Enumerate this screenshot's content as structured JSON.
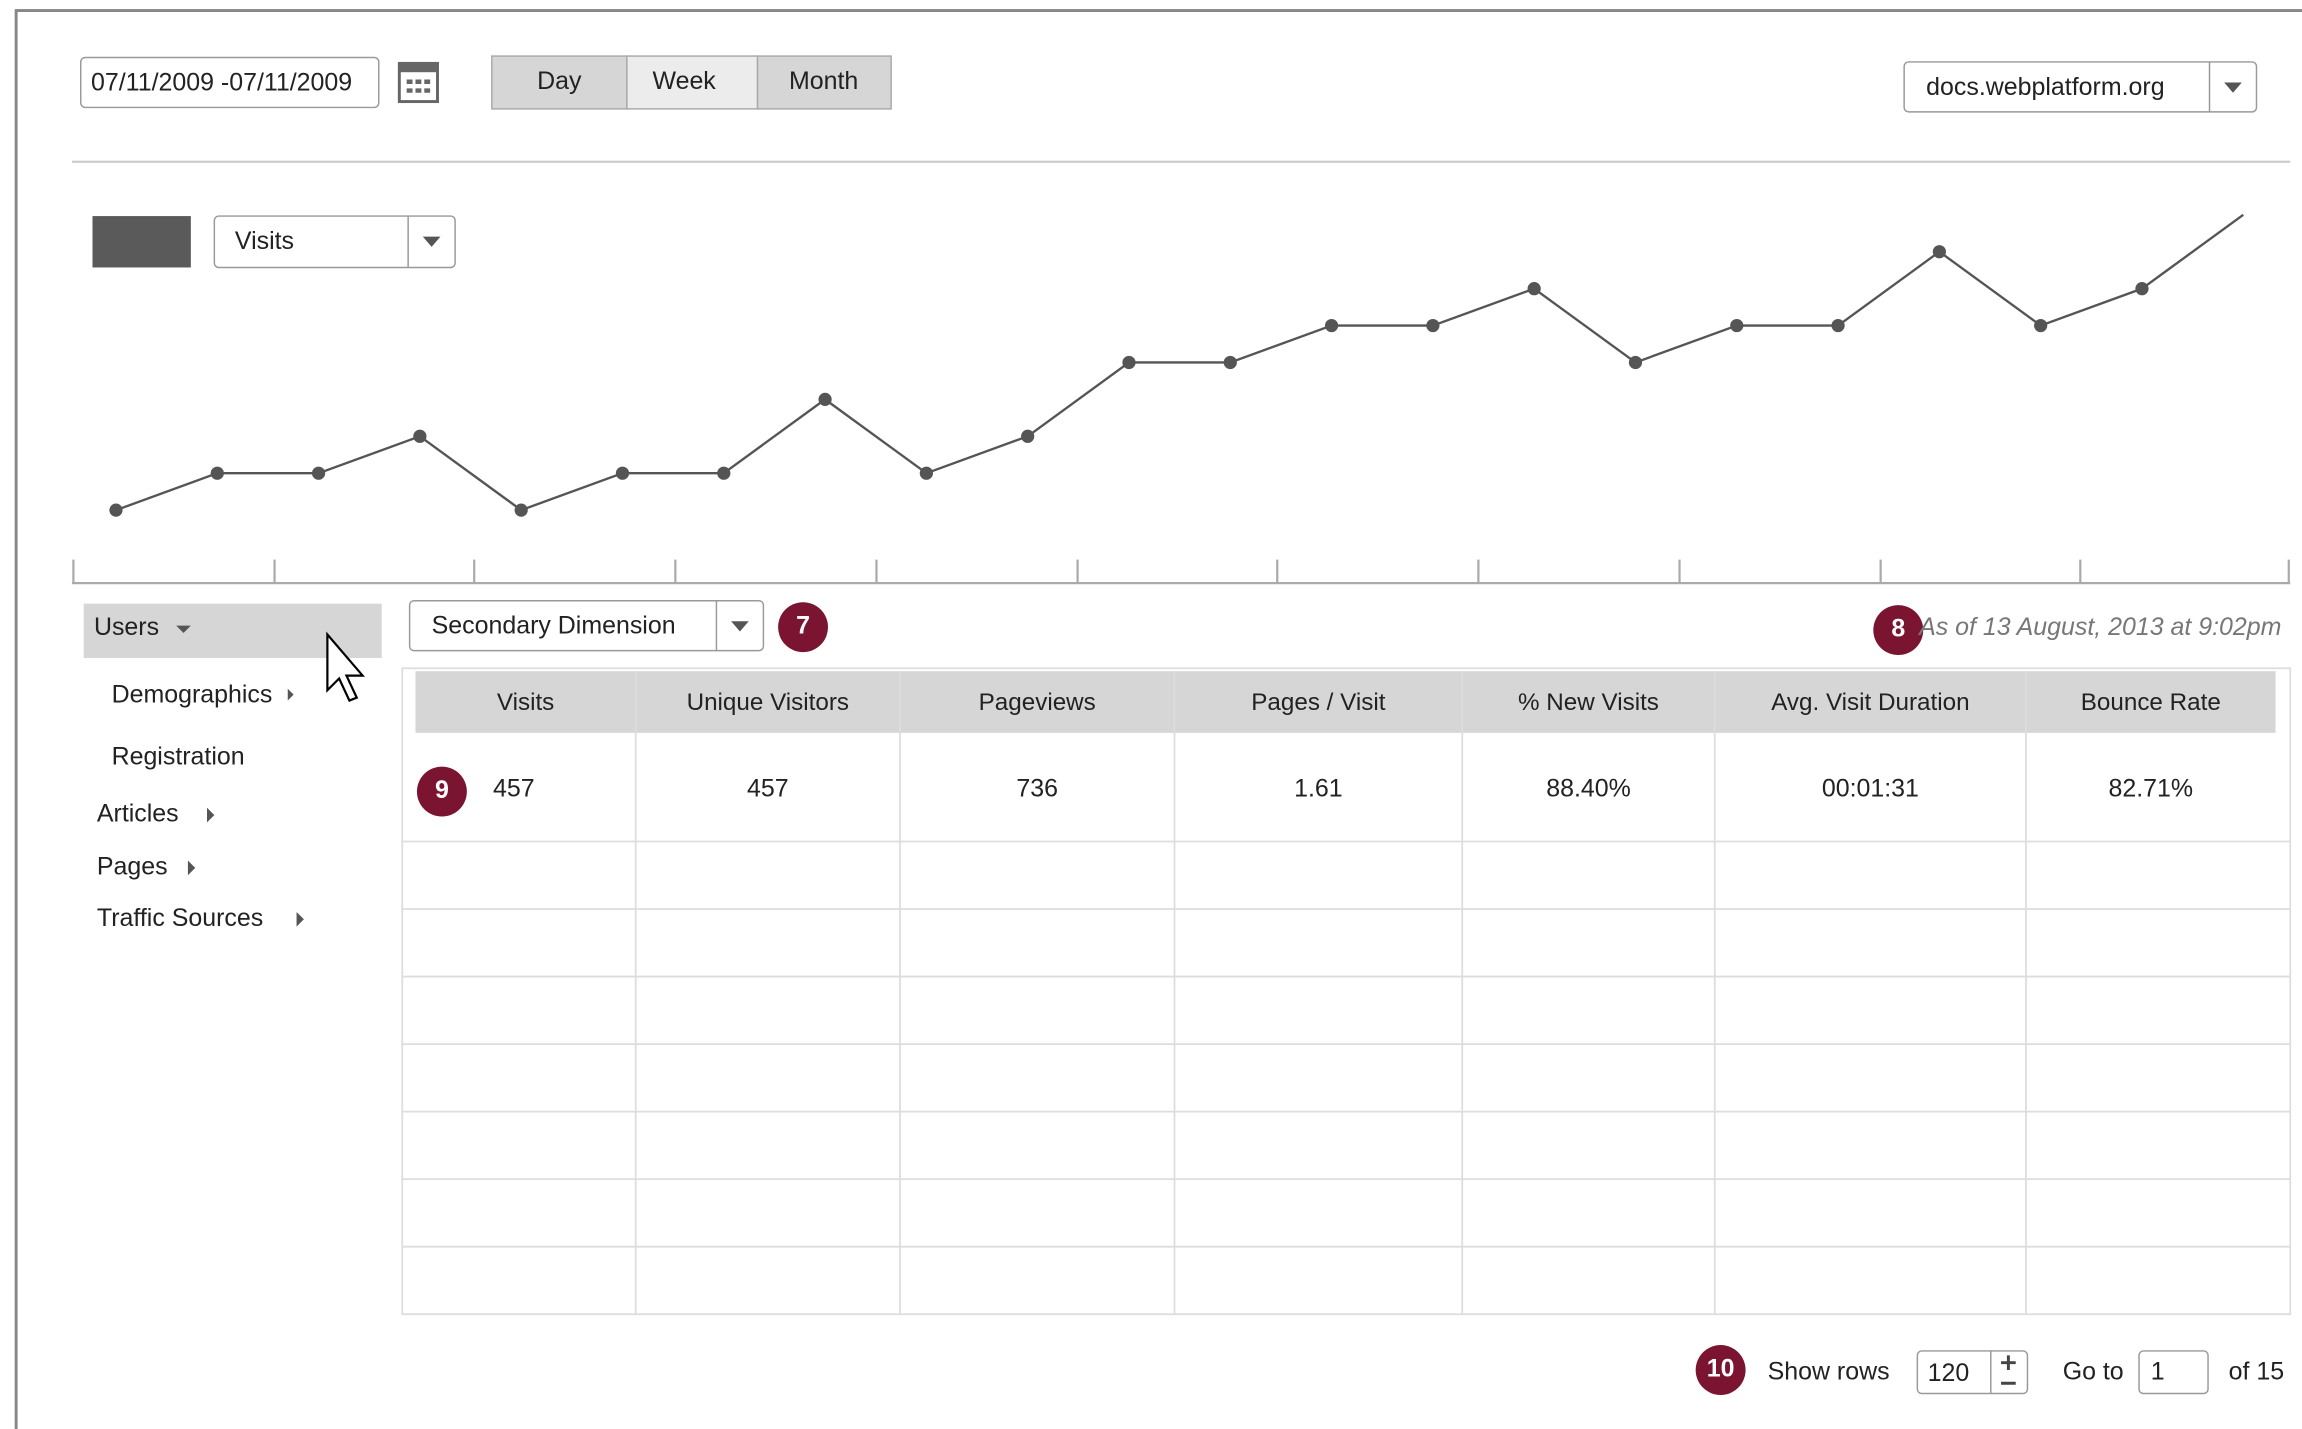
{
  "toolbar": {
    "date_range": "07/11/2009 -07/11/2009",
    "periods": [
      "Day",
      "Week",
      "Month"
    ],
    "site": "docs.webplatform.org"
  },
  "chart_data": {
    "type": "line",
    "metric": "Visits",
    "values": [
      0,
      1,
      1,
      2,
      0,
      1,
      1,
      3,
      1,
      2,
      4,
      4,
      5,
      5,
      6,
      4,
      5,
      5,
      7,
      5,
      6,
      8
    ],
    "ylim": [
      -1.5,
      9
    ],
    "color": "#555555"
  },
  "sidebar": {
    "users": "Users",
    "items": [
      "Demographics",
      "Registration"
    ],
    "sections": [
      "Articles",
      "Pages",
      "Traffic Sources"
    ]
  },
  "secondary_dimension": "Secondary Dimension",
  "timestamp": "As of 13 August, 2013 at 9:02pm",
  "callouts": [
    "7",
    "8",
    "9",
    "10"
  ],
  "table": {
    "headers": [
      "Visits",
      "Unique Visitors",
      "Pageviews",
      "Pages / Visit",
      "% New Visits",
      "Avg. Visit Duration",
      "Bounce Rate"
    ],
    "rows": [
      [
        "457",
        "457",
        "736",
        "1.61",
        "88.40%",
        "00:01:31",
        "82.71%"
      ]
    ]
  },
  "pagination": {
    "show_rows": "Show rows",
    "rows": "120",
    "goto": "Go to",
    "page": "1",
    "of": "of 15"
  }
}
